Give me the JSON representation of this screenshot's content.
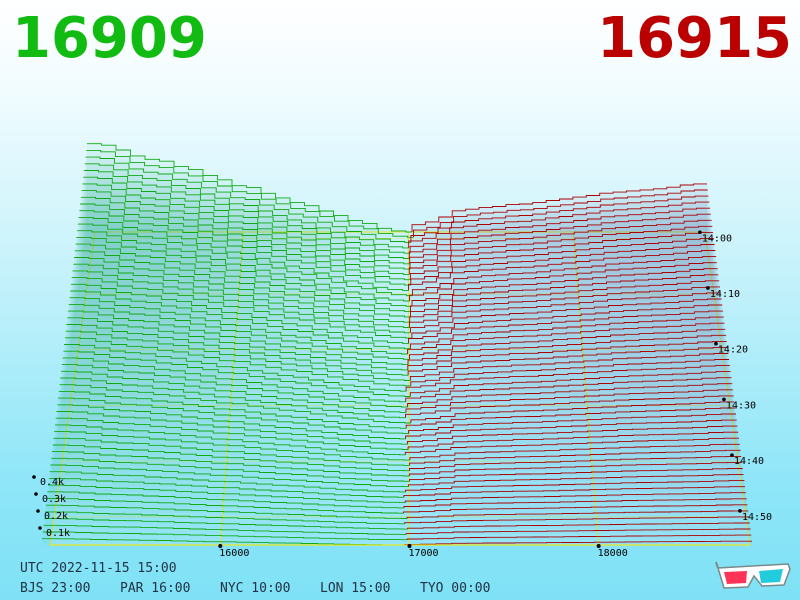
{
  "header": {
    "bid_price": "16909",
    "ask_price": "16915",
    "bid_color": "#11bb11",
    "ask_color": "#bb0000"
  },
  "clocks": {
    "utc": "UTC 2022-11-15 15:00",
    "cities": [
      "BJS 23:00",
      "PAR 16:00",
      "NYC 10:00",
      "LON 15:00",
      "TYO 00:00"
    ]
  },
  "chart_data": {
    "type": "area",
    "title": "",
    "x_axis": {
      "label": "",
      "ticks": [
        16000,
        17000,
        18000
      ]
    },
    "y_axis": {
      "label": "",
      "ticks": [
        "0.1k",
        "0.2k",
        "0.3k",
        "0.4k"
      ]
    },
    "time_axis": {
      "ticks": [
        "14:00",
        "14:10",
        "14:20",
        "14:30",
        "14:40",
        "14:50"
      ]
    },
    "series": [
      {
        "side": "bid",
        "color": "#11aa11",
        "snapshot_count": 60
      },
      {
        "side": "ask",
        "color": "#aa0000",
        "snapshot_count": 60
      }
    ],
    "grid": true,
    "grid_color": "#e8e820",
    "mid_price": 16912
  },
  "footer": {
    "icon": "3d-glasses-icon"
  }
}
